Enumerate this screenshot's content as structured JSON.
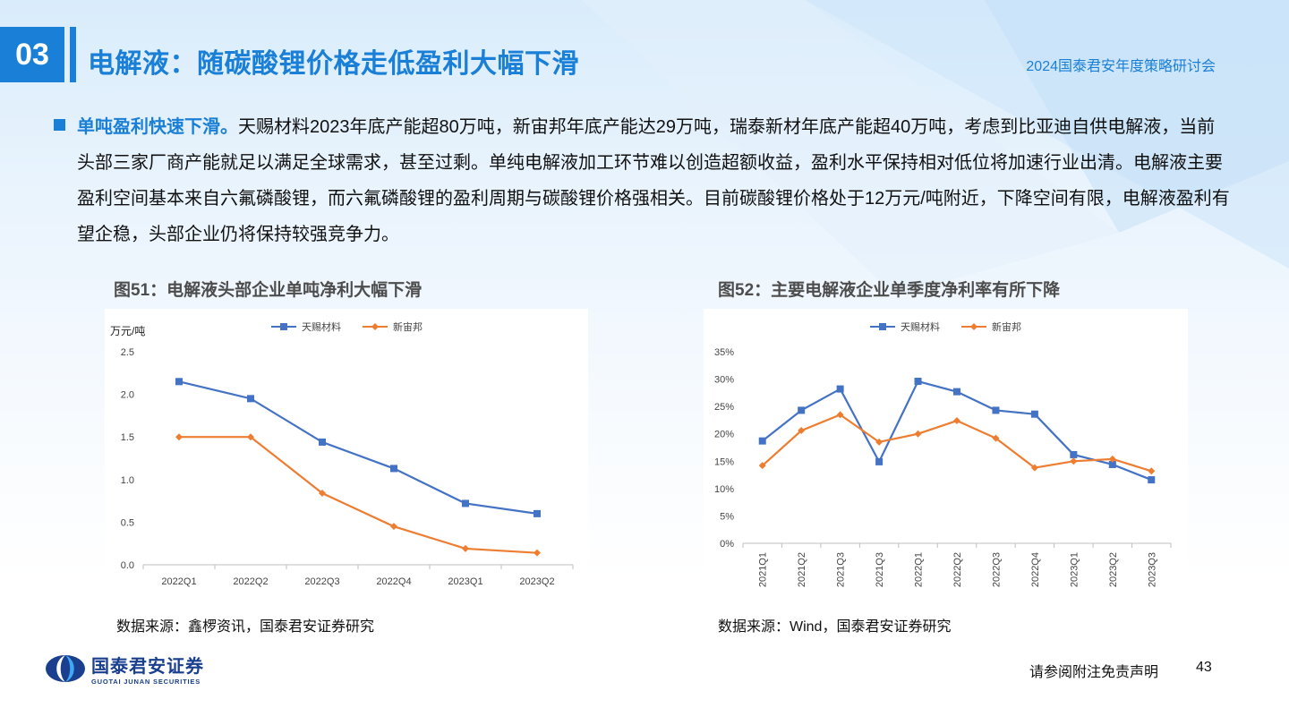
{
  "header": {
    "section_number": "03",
    "title": "电解液：随碳酸锂价格走低盈利大幅下滑",
    "event": "2024国泰君安年度策略研讨会"
  },
  "body": {
    "lead": "单吨盈利快速下滑。",
    "text": "天赐材料2023年底产能超80万吨，新宙邦年底产能达29万吨，瑞泰新材年底产能超40万吨，考虑到比亚迪自供电解液，当前头部三家厂商产能就足以满足全球需求，甚至过剩。单纯电解液加工环节难以创造超额收益，盈利水平保持相对低位将加速行业出清。电解液主要盈利空间基本来自六氟磷酸锂，而六氟磷酸锂的盈利周期与碳酸锂价格强相关。目前碳酸锂价格处于12万元/吨附近，下降空间有限，电解液盈利有望企稳，头部企业仍将保持较强竞争力。"
  },
  "figures": [
    {
      "title": "图51：电解液头部企业单吨净利大幅下滑",
      "source": "数据来源：鑫椤资讯，国泰君安证券研究"
    },
    {
      "title": "图52：主要电解液企业单季度净利率有所下降",
      "source": "数据来源：Wind，国泰君安证券研究"
    }
  ],
  "colors": {
    "accent": "#1a7fd6",
    "series_blue": "#4472c4",
    "series_orange": "#ed7d31"
  },
  "chart_data": [
    {
      "type": "line",
      "ylabel": "万元/吨",
      "categories": [
        "2022Q1",
        "2022Q2",
        "2022Q3",
        "2022Q4",
        "2023Q1",
        "2023Q2"
      ],
      "ylim": [
        0,
        2.5
      ],
      "yticks": [
        "0.0",
        "0.5",
        "1.0",
        "1.5",
        "2.0",
        "2.5"
      ],
      "legend_position": "top",
      "grid": false,
      "series": [
        {
          "name": "天赐材料",
          "color": "#4472c4",
          "marker": "square",
          "values": [
            2.15,
            1.95,
            1.44,
            1.13,
            0.72,
            0.6
          ]
        },
        {
          "name": "新宙邦",
          "color": "#ed7d31",
          "marker": "diamond",
          "values": [
            1.5,
            1.5,
            0.84,
            0.45,
            0.19,
            0.14
          ]
        }
      ]
    },
    {
      "type": "line",
      "categories": [
        "2021Q1",
        "2021Q2",
        "2021Q3",
        "2021Q3",
        "2022Q1",
        "2022Q2",
        "2022Q3",
        "2022Q4",
        "2023Q1",
        "2023Q2",
        "2023Q3"
      ],
      "ylim": [
        0,
        35
      ],
      "yticks": [
        "0%",
        "5%",
        "10%",
        "15%",
        "20%",
        "25%",
        "30%",
        "35%"
      ],
      "legend_position": "top",
      "grid": false,
      "series": [
        {
          "name": "天赐材料",
          "color": "#4472c4",
          "marker": "square",
          "values": [
            18.7,
            24.3,
            28.2,
            14.9,
            29.6,
            27.7,
            24.3,
            23.6,
            16.2,
            14.4,
            11.6
          ]
        },
        {
          "name": "新宙邦",
          "color": "#ed7d31",
          "marker": "diamond",
          "values": [
            14.2,
            20.6,
            23.5,
            18.5,
            20.0,
            22.4,
            19.2,
            13.8,
            15.0,
            15.4,
            13.2
          ]
        }
      ]
    }
  ],
  "footer": {
    "logo_text": "国泰君安证券",
    "logo_sub": "GUOTAI JUNAN SECURITIES",
    "disclaimer": "请参阅附注免责声明",
    "page_number": "43"
  }
}
